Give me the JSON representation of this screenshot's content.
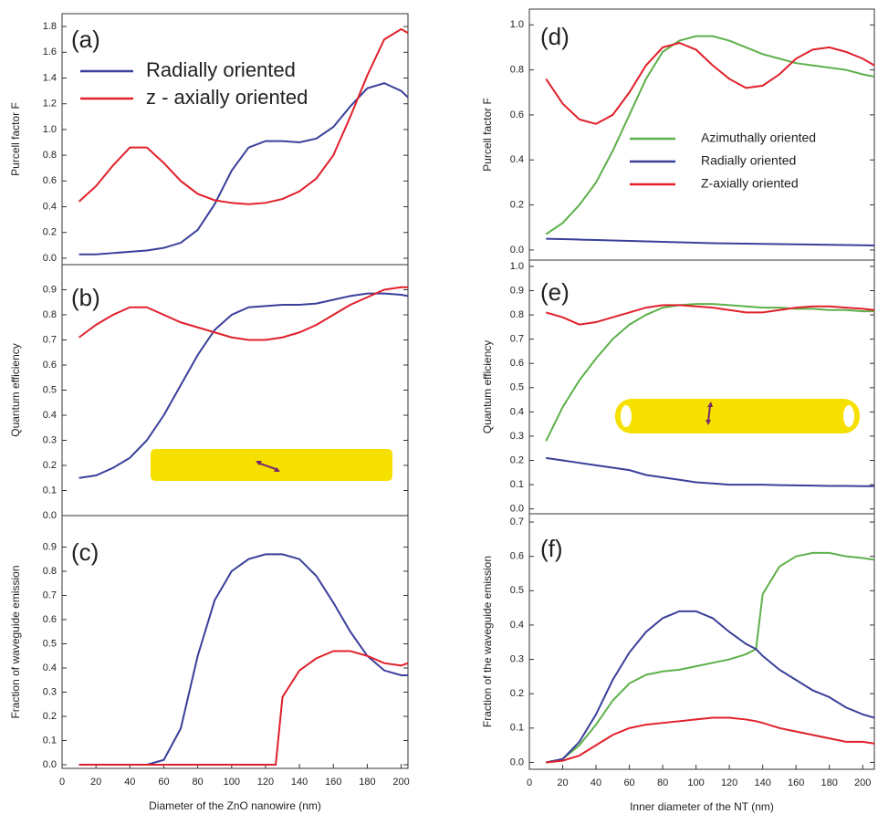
{
  "chart_data": [
    {
      "type": "line",
      "annotation": "(a)",
      "y_label": "Purcell factor F",
      "xlim": [
        0,
        204
      ],
      "ylim": [
        -0.05,
        1.9
      ],
      "yticks": [
        {
          "value": 0,
          "label": "0.0"
        },
        0.2,
        0.4,
        0.6,
        0.8,
        {
          "value": 1,
          "label": "1.0"
        },
        1.2,
        1.4,
        1.6,
        1.8
      ],
      "x": [
        10,
        20,
        30,
        40,
        50,
        60,
        70,
        80,
        90,
        100,
        110,
        120,
        130,
        140,
        150,
        160,
        170,
        180,
        190,
        200,
        204
      ],
      "series": [
        {
          "name": "Radially oriented",
          "color": "#3a3f9a",
          "values": [
            0.03,
            0.03,
            0.04,
            0.05,
            0.06,
            0.08,
            0.12,
            0.22,
            0.42,
            0.68,
            0.86,
            0.91,
            0.91,
            0.9,
            0.93,
            1.02,
            1.18,
            1.32,
            1.36,
            1.3,
            1.25
          ]
        },
        {
          "name": "z - axially oriented",
          "color": "#e0202a",
          "values": [
            0.44,
            0.56,
            0.72,
            0.86,
            0.86,
            0.74,
            0.6,
            0.5,
            0.45,
            0.43,
            0.42,
            0.43,
            0.46,
            0.52,
            0.62,
            0.8,
            1.1,
            1.42,
            1.7,
            1.78,
            1.75
          ]
        }
      ]
    },
    {
      "type": "line",
      "annotation": "(b)",
      "y_label": "Quantum efficiency",
      "xlim": [
        0,
        204
      ],
      "ylim": [
        0,
        1.0
      ],
      "yticks": [
        {
          "value": 0,
          "label": "0.0"
        },
        0.1,
        0.2,
        0.3,
        0.4,
        0.5,
        0.6,
        0.7,
        0.8,
        0.9
      ],
      "x": [
        10,
        20,
        30,
        40,
        50,
        60,
        70,
        80,
        90,
        100,
        110,
        120,
        130,
        140,
        150,
        160,
        170,
        180,
        190,
        200,
        204
      ],
      "series": [
        {
          "color": "#3a3f9a",
          "values": [
            0.15,
            0.16,
            0.19,
            0.23,
            0.3,
            0.4,
            0.52,
            0.64,
            0.74,
            0.8,
            0.83,
            0.835,
            0.84,
            0.84,
            0.845,
            0.86,
            0.875,
            0.885,
            0.885,
            0.88,
            0.875
          ]
        },
        {
          "color": "#e0202a",
          "values": [
            0.71,
            0.76,
            0.8,
            0.83,
            0.83,
            0.8,
            0.77,
            0.75,
            0.73,
            0.71,
            0.7,
            0.7,
            0.71,
            0.73,
            0.76,
            0.8,
            0.84,
            0.87,
            0.9,
            0.91,
            0.91
          ]
        }
      ]
    },
    {
      "type": "line",
      "annotation": "(c)",
      "y_label": "Fraction of waveguide emission",
      "x_label": "Diameter of the ZnO nanowire (nm)",
      "xlim": [
        0,
        204
      ],
      "ylim": [
        -0.015,
        1.03
      ],
      "xticks": [
        0,
        20,
        40,
        60,
        80,
        100,
        120,
        140,
        160,
        180,
        200
      ],
      "yticks": [
        {
          "value": 0,
          "label": "0.0"
        },
        0.1,
        0.2,
        0.3,
        0.4,
        0.5,
        0.6,
        0.7,
        0.8,
        0.9
      ],
      "x": [
        10,
        20,
        30,
        40,
        50,
        60,
        70,
        80,
        90,
        100,
        110,
        120,
        126,
        130,
        140,
        150,
        160,
        170,
        180,
        190,
        200,
        204
      ],
      "series": [
        {
          "color": "#3a3f9a",
          "values": [
            0,
            0,
            0,
            0,
            0,
            0.02,
            0.15,
            0.45,
            0.68,
            0.8,
            0.85,
            0.87,
            0.87,
            0.87,
            0.85,
            0.78,
            0.67,
            0.55,
            0.45,
            0.39,
            0.37,
            0.37
          ]
        },
        {
          "color": "#e0202a",
          "values": [
            0,
            0,
            0,
            0,
            0,
            0,
            0,
            0,
            0,
            0,
            0,
            0,
            0,
            0.28,
            0.39,
            0.44,
            0.47,
            0.47,
            0.45,
            0.42,
            0.41,
            0.42
          ]
        }
      ]
    },
    {
      "type": "line",
      "annotation": "(d)",
      "y_label": "Purcell factor F",
      "xlim": [
        0,
        207
      ],
      "ylim": [
        -0.045,
        1.07
      ],
      "yticks": [
        {
          "value": 0,
          "label": "0.0"
        },
        0.2,
        0.4,
        0.6,
        0.8,
        {
          "value": 1,
          "label": "1.0"
        }
      ],
      "x": [
        10,
        20,
        30,
        40,
        50,
        60,
        70,
        80,
        90,
        100,
        110,
        120,
        130,
        140,
        150,
        160,
        170,
        180,
        190,
        200,
        207
      ],
      "series": [
        {
          "name": "Azimuthally oriented",
          "color": "#5db04a",
          "values": [
            0.07,
            0.12,
            0.2,
            0.3,
            0.44,
            0.6,
            0.76,
            0.88,
            0.93,
            0.95,
            0.95,
            0.93,
            0.9,
            0.87,
            0.85,
            0.83,
            0.82,
            0.81,
            0.8,
            0.78,
            0.77
          ]
        },
        {
          "name": "Radially oriented",
          "color": "#3a3f9a",
          "values": [
            0.05,
            0.048,
            0.046,
            0.044,
            0.042,
            0.04,
            0.038,
            0.036,
            0.034,
            0.032,
            0.03,
            0.029,
            0.028,
            0.027,
            0.026,
            0.025,
            0.024,
            0.023,
            0.022,
            0.021,
            0.02
          ]
        },
        {
          "name": "Z-axially oriented",
          "color": "#e0202a",
          "values": [
            0.76,
            0.65,
            0.58,
            0.56,
            0.6,
            0.7,
            0.82,
            0.9,
            0.92,
            0.89,
            0.82,
            0.76,
            0.72,
            0.73,
            0.78,
            0.85,
            0.89,
            0.9,
            0.88,
            0.85,
            0.82
          ]
        }
      ]
    },
    {
      "type": "line",
      "annotation": "(e)",
      "y_label": "Quantum efficiency",
      "xlim": [
        0,
        207
      ],
      "ylim": [
        -0.02,
        1.026
      ],
      "yticks": [
        {
          "value": 0,
          "label": "0.0"
        },
        0.1,
        0.2,
        0.3,
        0.4,
        0.5,
        0.6,
        0.7,
        0.8,
        0.9,
        {
          "value": 1,
          "label": "1.0"
        }
      ],
      "x": [
        10,
        20,
        30,
        40,
        50,
        60,
        70,
        80,
        90,
        100,
        110,
        120,
        130,
        140,
        150,
        160,
        170,
        180,
        190,
        200,
        207
      ],
      "series": [
        {
          "color": "#5db04a",
          "values": [
            0.28,
            0.42,
            0.53,
            0.62,
            0.7,
            0.76,
            0.8,
            0.83,
            0.84,
            0.845,
            0.845,
            0.84,
            0.835,
            0.83,
            0.83,
            0.825,
            0.825,
            0.82,
            0.82,
            0.815,
            0.815
          ]
        },
        {
          "color": "#3a3f9a",
          "values": [
            0.21,
            0.2,
            0.19,
            0.18,
            0.17,
            0.16,
            0.14,
            0.13,
            0.12,
            0.11,
            0.105,
            0.1,
            0.1,
            0.1,
            0.098,
            0.097,
            0.096,
            0.095,
            0.095,
            0.094,
            0.094
          ]
        },
        {
          "color": "#e0202a",
          "values": [
            0.81,
            0.79,
            0.76,
            0.77,
            0.79,
            0.81,
            0.83,
            0.84,
            0.84,
            0.835,
            0.83,
            0.82,
            0.81,
            0.81,
            0.82,
            0.83,
            0.835,
            0.835,
            0.83,
            0.825,
            0.82
          ]
        }
      ]
    },
    {
      "type": "line",
      "annotation": "(f)",
      "y_label": "Fraction of the waveguide emission",
      "x_label": "Inner diameter of the NT (nm)",
      "xlim": [
        0,
        207
      ],
      "ylim": [
        -0.02,
        0.724
      ],
      "xticks": [
        0,
        20,
        40,
        60,
        80,
        100,
        120,
        140,
        160,
        180,
        200
      ],
      "yticks": [
        {
          "value": 0,
          "label": "0.0"
        },
        0.1,
        0.2,
        0.3,
        0.4,
        0.5,
        0.6,
        0.7
      ],
      "x": [
        10,
        20,
        30,
        40,
        50,
        60,
        70,
        80,
        90,
        100,
        110,
        120,
        130,
        136,
        140,
        150,
        160,
        170,
        180,
        190,
        200,
        207
      ],
      "series": [
        {
          "color": "#5db04a",
          "values": [
            0,
            0.01,
            0.05,
            0.11,
            0.18,
            0.23,
            0.255,
            0.265,
            0.27,
            0.28,
            0.29,
            0.3,
            0.315,
            0.33,
            0.49,
            0.57,
            0.6,
            0.61,
            0.61,
            0.6,
            0.595,
            0.59
          ]
        },
        {
          "color": "#3a3f9a",
          "values": [
            0,
            0.01,
            0.06,
            0.14,
            0.24,
            0.32,
            0.38,
            0.42,
            0.44,
            0.44,
            0.42,
            0.38,
            0.345,
            0.33,
            0.31,
            0.27,
            0.24,
            0.21,
            0.19,
            0.16,
            0.14,
            0.13
          ]
        },
        {
          "color": "#e0202a",
          "values": [
            0,
            0.005,
            0.02,
            0.05,
            0.08,
            0.1,
            0.11,
            0.115,
            0.12,
            0.125,
            0.13,
            0.13,
            0.125,
            0.12,
            0.115,
            0.1,
            0.09,
            0.08,
            0.07,
            0.06,
            0.06,
            0.055
          ]
        }
      ]
    }
  ]
}
